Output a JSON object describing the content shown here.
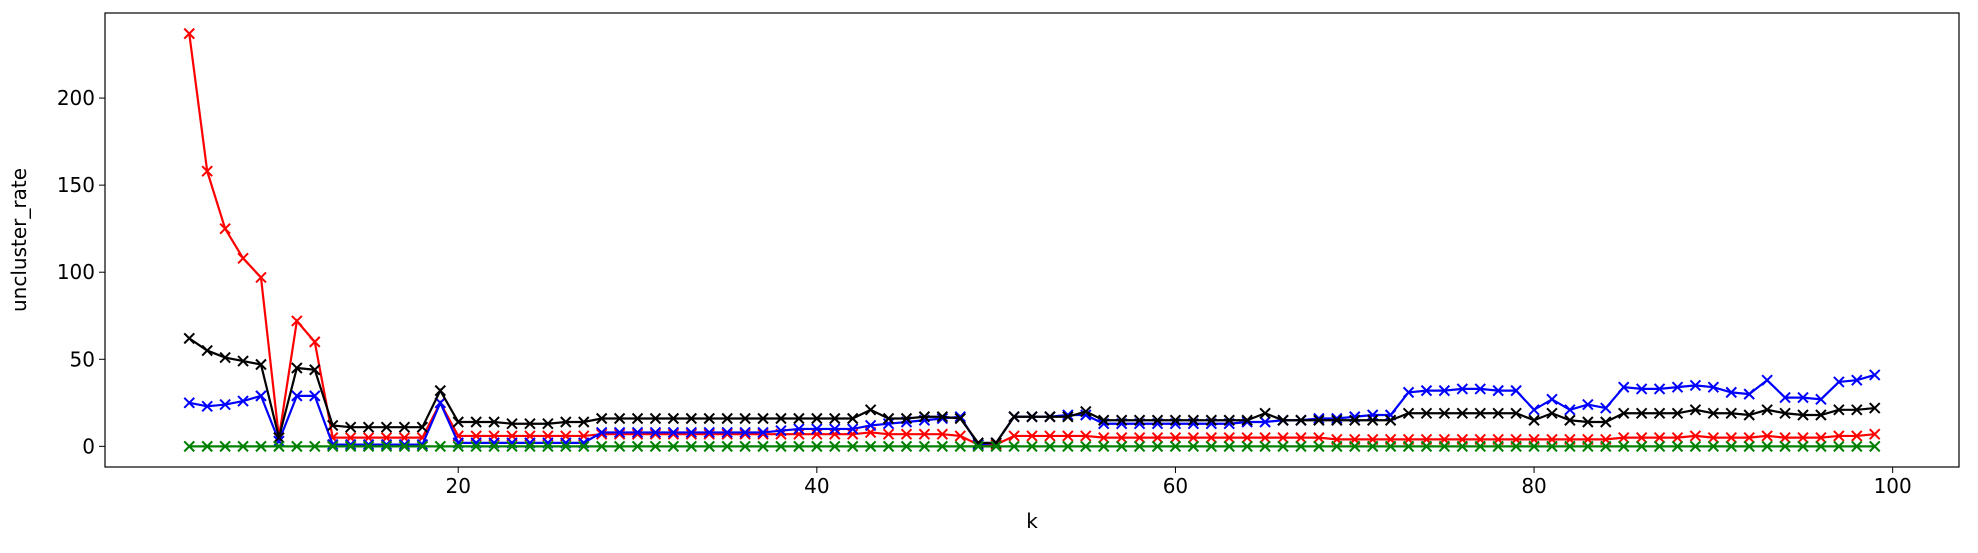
{
  "chart_data": {
    "type": "line",
    "xlabel": "k",
    "ylabel": "uncluster_rate",
    "x": [
      5,
      6,
      7,
      8,
      9,
      10,
      11,
      12,
      13,
      14,
      15,
      16,
      17,
      18,
      19,
      20,
      21,
      22,
      23,
      24,
      25,
      26,
      27,
      28,
      29,
      30,
      31,
      32,
      33,
      34,
      35,
      36,
      37,
      38,
      39,
      40,
      41,
      42,
      43,
      44,
      45,
      46,
      47,
      48,
      49,
      50,
      51,
      52,
      53,
      54,
      55,
      56,
      57,
      58,
      59,
      60,
      61,
      62,
      63,
      64,
      65,
      66,
      67,
      68,
      69,
      70,
      71,
      72,
      73,
      74,
      75,
      76,
      77,
      78,
      79,
      80,
      81,
      82,
      83,
      84,
      85,
      86,
      87,
      88,
      89,
      90,
      91,
      92,
      93,
      94,
      95,
      96,
      97,
      98,
      99
    ],
    "series": [
      {
        "color": "#ff0000",
        "values": [
          237,
          158,
          125,
          108,
          97,
          5,
          72,
          60,
          5,
          5,
          5,
          5,
          5,
          5,
          25,
          6,
          6,
          6,
          6,
          6,
          6,
          6,
          6,
          7,
          7,
          7,
          7,
          7,
          7,
          7,
          7,
          7,
          7,
          7,
          7,
          7,
          7,
          7,
          8,
          7,
          7,
          7,
          7,
          6,
          1,
          1,
          6,
          6,
          6,
          6,
          6,
          5,
          5,
          5,
          5,
          5,
          5,
          5,
          5,
          5,
          5,
          5,
          5,
          5,
          4,
          4,
          4,
          4,
          4,
          4,
          4,
          4,
          4,
          4,
          4,
          4,
          4,
          4,
          4,
          4,
          5,
          5,
          5,
          5,
          6,
          5,
          5,
          5,
          6,
          5,
          5,
          5,
          6,
          6,
          7
        ]
      },
      {
        "color": "#0000ff",
        "values": [
          25,
          23,
          24,
          26,
          29,
          3,
          29,
          29,
          1,
          1,
          1,
          1,
          1,
          1,
          25,
          2,
          2,
          2,
          2,
          2,
          2,
          2,
          2,
          8,
          8,
          8,
          8,
          8,
          8,
          8,
          8,
          8,
          8,
          9,
          10,
          10,
          10,
          10,
          12,
          13,
          14,
          15,
          16,
          17,
          1,
          2,
          17,
          17,
          17,
          18,
          18,
          13,
          13,
          13,
          13,
          13,
          13,
          13,
          13,
          14,
          14,
          15,
          15,
          16,
          16,
          17,
          18,
          18,
          31,
          32,
          32,
          33,
          33,
          32,
          32,
          21,
          27,
          21,
          24,
          22,
          34,
          33,
          33,
          34,
          35,
          34,
          31,
          30,
          38,
          28,
          28,
          27,
          37,
          38,
          41
        ]
      },
      {
        "color": "#000000",
        "values": [
          62,
          55,
          51,
          49,
          47,
          5,
          45,
          44,
          12,
          11,
          11,
          11,
          11,
          11,
          32,
          14,
          14,
          14,
          13,
          13,
          13,
          14,
          14,
          16,
          16,
          16,
          16,
          16,
          16,
          16,
          16,
          16,
          16,
          16,
          16,
          16,
          16,
          16,
          21,
          16,
          16,
          17,
          17,
          16,
          2,
          2,
          17,
          17,
          17,
          17,
          20,
          15,
          15,
          15,
          15,
          15,
          15,
          15,
          15,
          15,
          19,
          15,
          15,
          15,
          15,
          15,
          15,
          15,
          19,
          19,
          19,
          19,
          19,
          19,
          19,
          15,
          19,
          15,
          14,
          14,
          19,
          19,
          19,
          19,
          21,
          19,
          19,
          18,
          21,
          19,
          18,
          18,
          21,
          21,
          22
        ]
      },
      {
        "color": "#008000",
        "values": [
          0,
          0,
          0,
          0,
          0,
          0,
          0,
          0,
          0,
          0,
          0,
          0,
          0,
          0,
          0,
          0,
          0,
          0,
          0,
          0,
          0,
          0,
          0,
          0,
          0,
          0,
          0,
          0,
          0,
          0,
          0,
          0,
          0,
          0,
          0,
          0,
          0,
          0,
          0,
          0,
          0,
          0,
          0,
          0,
          0,
          0,
          0,
          0,
          0,
          0,
          0,
          0,
          0,
          0,
          0,
          0,
          0,
          0,
          0,
          0,
          0,
          0,
          0,
          0,
          0,
          0,
          0,
          0,
          0,
          0,
          0,
          0,
          0,
          0,
          0,
          0,
          0,
          0,
          0,
          0,
          0,
          0,
          0,
          0,
          0,
          0,
          0,
          0,
          0,
          0,
          0,
          0,
          0,
          0,
          0
        ]
      }
    ],
    "xlim": [
      0.3,
      103.7
    ],
    "ylim": [
      -11.85,
      248.85
    ],
    "xticks": [
      20,
      40,
      60,
      80,
      100
    ],
    "yticks": [
      0,
      50,
      100,
      150,
      200
    ],
    "marker": "x"
  }
}
